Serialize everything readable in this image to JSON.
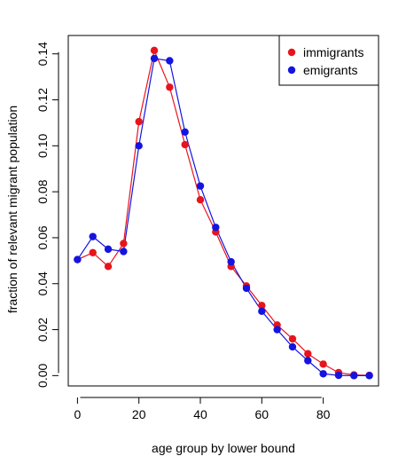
{
  "chart_data": {
    "type": "line",
    "xlabel": "age group by lower bound",
    "ylabel": "fraction of relevant migrant population",
    "xlim": [
      -3,
      98
    ],
    "ylim": [
      -0.0045,
      0.148
    ],
    "xticks": [
      0,
      20,
      40,
      60,
      80
    ],
    "xtick_labels": [
      "0",
      "20",
      "40",
      "60",
      "80"
    ],
    "yticks": [
      0.0,
      0.02,
      0.04,
      0.06,
      0.08,
      0.1,
      0.12,
      0.14
    ],
    "ytick_labels": [
      "0.00",
      "0.02",
      "0.04",
      "0.06",
      "0.08",
      "0.10",
      "0.12",
      "0.14"
    ],
    "grid": false,
    "legend_position": "top-right",
    "x": [
      0,
      5,
      10,
      15,
      20,
      25,
      30,
      35,
      40,
      45,
      50,
      55,
      60,
      65,
      70,
      75,
      80,
      85,
      90,
      95
    ],
    "series": [
      {
        "name": "immigrants",
        "color": "#e8141c",
        "values": [
          0.0505,
          0.0535,
          0.0475,
          0.0575,
          0.1105,
          0.1415,
          0.1255,
          0.1005,
          0.0765,
          0.0625,
          0.0475,
          0.039,
          0.0305,
          0.022,
          0.016,
          0.0095,
          0.005,
          0.0013,
          0.0003,
          0.0001
        ]
      },
      {
        "name": "emigrants",
        "color": "#1414e0",
        "values": [
          0.0505,
          0.0605,
          0.055,
          0.054,
          0.1,
          0.138,
          0.137,
          0.106,
          0.0825,
          0.0645,
          0.0495,
          0.038,
          0.028,
          0.02,
          0.0125,
          0.0065,
          0.0008,
          0.0001,
          0.0,
          0.0
        ]
      }
    ]
  }
}
